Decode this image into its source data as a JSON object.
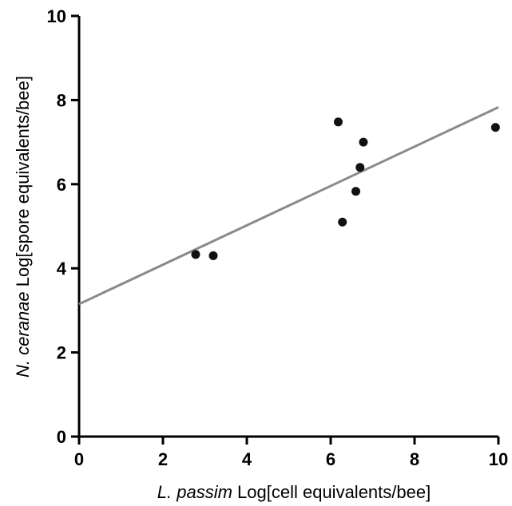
{
  "chart_data": {
    "type": "scatter",
    "title": "",
    "xlabel": {
      "italic": "L. passim",
      "rest": " Log[cell equivalents/bee]"
    },
    "ylabel": {
      "italic": "N. ceranae",
      "rest": " Log[spore equivalents/bee]"
    },
    "xlim": [
      0,
      10
    ],
    "ylim": [
      0,
      10
    ],
    "xticks": [
      0,
      2,
      4,
      6,
      8,
      10
    ],
    "yticks": [
      0,
      2,
      4,
      6,
      8,
      10
    ],
    "grid": false,
    "legend": "none",
    "points": [
      {
        "x": 2.78,
        "y": 4.33
      },
      {
        "x": 3.2,
        "y": 4.3
      },
      {
        "x": 6.18,
        "y": 7.48
      },
      {
        "x": 6.28,
        "y": 5.1
      },
      {
        "x": 6.6,
        "y": 5.83
      },
      {
        "x": 6.7,
        "y": 6.4
      },
      {
        "x": 6.78,
        "y": 7.0
      },
      {
        "x": 9.93,
        "y": 7.35
      }
    ],
    "fit_line": {
      "intercept": 3.15,
      "slope": 0.468,
      "x_range": [
        0,
        10
      ]
    },
    "colors": {
      "points": "#111111",
      "fit_line": "#8a8a8a",
      "axes": "#000000"
    }
  }
}
